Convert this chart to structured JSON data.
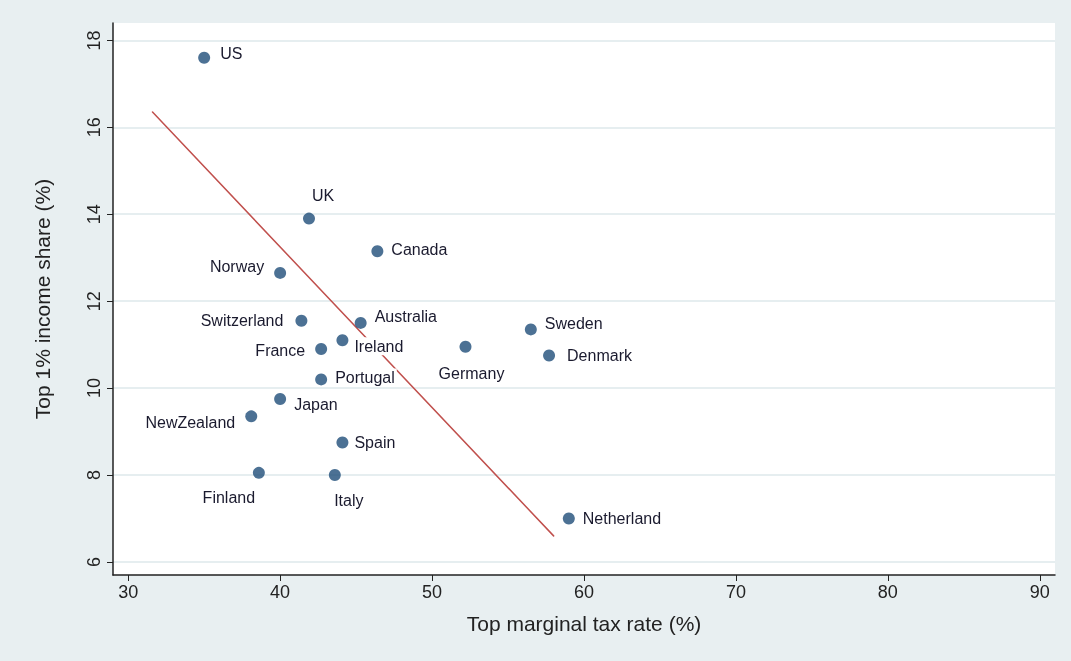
{
  "chart_data": {
    "type": "scatter",
    "xlabel": "Top marginal tax rate (%)",
    "ylabel": "Top 1% income share (%)",
    "xlim": [
      29,
      91
    ],
    "xticks": [
      30,
      40,
      50,
      60,
      70,
      80,
      90
    ],
    "ylim": [
      5.7,
      18.4
    ],
    "yticks": [
      6,
      8,
      10,
      12,
      14,
      16,
      18
    ],
    "grid": "y",
    "marker": "circle",
    "series": [
      {
        "type": "scatter",
        "color": "#1f4e79",
        "x": [
          35,
          41.9,
          46.4,
          40.0,
          41.4,
          45.3,
          42.7,
          44.1,
          42.7,
          40.0,
          38.1,
          44.1,
          38.6,
          43.6,
          52.2,
          56.5,
          57.7,
          59.0
        ],
        "values": [
          17.6,
          13.9,
          13.15,
          12.65,
          11.55,
          11.5,
          10.9,
          11.1,
          10.2,
          9.75,
          9.35,
          8.75,
          8.05,
          8.0,
          10.95,
          11.35,
          10.75,
          7.0
        ]
      },
      {
        "type": "line",
        "color": "#c0504d",
        "x": [
          31.6,
          58.0
        ],
        "values": [
          16.35,
          6.6
        ],
        "marker": "none",
        "line_style": "solid"
      }
    ],
    "annotations": [
      {
        "text": "US",
        "x": 35,
        "y": 17.6
      },
      {
        "text": "UK",
        "x": 41.9,
        "y": 13.9
      },
      {
        "text": "Canada",
        "x": 46.4,
        "y": 13.15
      },
      {
        "text": "Norway",
        "x": 40.0,
        "y": 12.65
      },
      {
        "text": "Switzerland",
        "x": 41.4,
        "y": 11.55
      },
      {
        "text": "Australia",
        "x": 45.3,
        "y": 11.5
      },
      {
        "text": "France",
        "x": 42.7,
        "y": 10.9
      },
      {
        "text": "Ireland",
        "x": 44.1,
        "y": 11.1
      },
      {
        "text": "Portugal",
        "x": 42.7,
        "y": 10.2
      },
      {
        "text": "Japan",
        "x": 40.0,
        "y": 9.75
      },
      {
        "text": "NewZealand",
        "x": 38.1,
        "y": 9.35
      },
      {
        "text": "Spain",
        "x": 44.1,
        "y": 8.75
      },
      {
        "text": "Finland",
        "x": 38.6,
        "y": 8.05
      },
      {
        "text": "Italy",
        "x": 43.6,
        "y": 8.0
      },
      {
        "text": "Germany",
        "x": 52.2,
        "y": 10.95
      },
      {
        "text": "Sweden",
        "x": 56.5,
        "y": 11.35
      },
      {
        "text": "Denmark",
        "x": 57.7,
        "y": 10.75
      },
      {
        "text": "Netherland",
        "x": 59.0,
        "y": 7.0
      }
    ]
  }
}
